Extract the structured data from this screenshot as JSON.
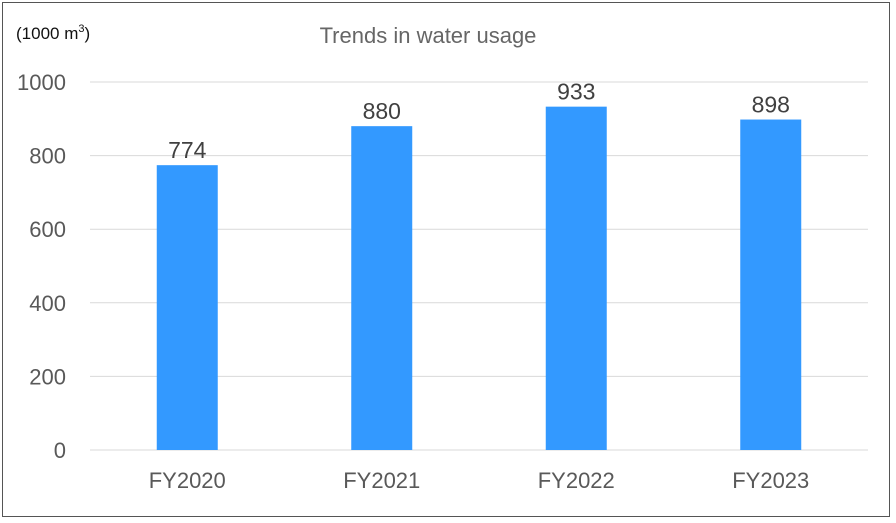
{
  "chart_data": {
    "type": "bar",
    "title": "Trends in water usage",
    "unit_label": "(1000 m",
    "unit_superscript": "3",
    "unit_close": ")",
    "categories": [
      "FY2020",
      "FY2021",
      "FY2022",
      "FY2023"
    ],
    "values": [
      774,
      880,
      933,
      898
    ],
    "data_labels": [
      "774",
      "880",
      "933",
      "898"
    ],
    "y_ticks": [
      "0",
      "200",
      "400",
      "600",
      "800",
      "1000"
    ],
    "ylim": [
      0,
      1000
    ],
    "grid": true,
    "bar_color": "#3399ff",
    "grid_color": "#d9d9d9"
  }
}
